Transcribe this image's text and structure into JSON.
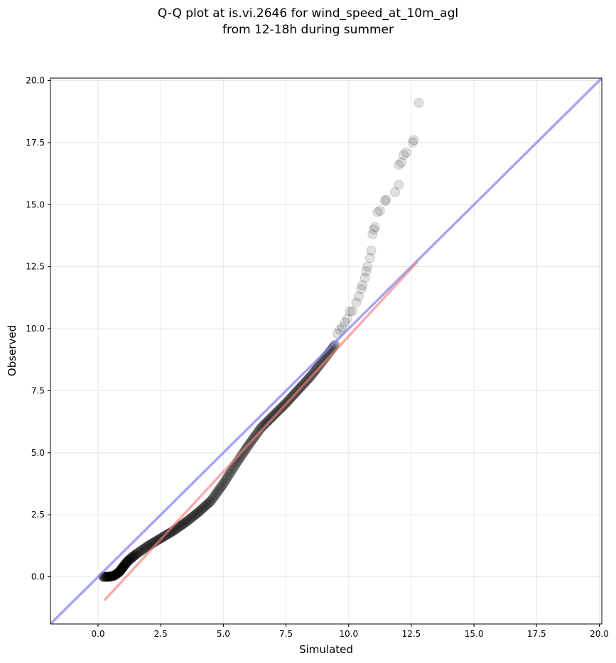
{
  "chart_data": {
    "type": "scatter",
    "title_line1": "Q-Q plot at is.vi.2646 for wind_speed_at_10m_agl",
    "title_line2": "from 12-18h during summer",
    "xlabel": "Simulated",
    "ylabel": "Observed",
    "xlim": [
      -1.9,
      20.1
    ],
    "ylim": [
      -1.9,
      20.1
    ],
    "xticks": [
      "0.0",
      "2.5",
      "5.0",
      "7.5",
      "10.0",
      "12.5",
      "15.0",
      "17.5",
      "20.0"
    ],
    "yticks": [
      "0.0",
      "2.5",
      "5.0",
      "7.5",
      "10.0",
      "12.5",
      "15.0",
      "17.5",
      "20.0"
    ],
    "grid": true,
    "colors": {
      "points": "#000000",
      "identity_line": "#7f7fef",
      "fit_line": "#f28080",
      "grid": "#e6e6e6"
    },
    "identity_line": {
      "x": [
        -1.9,
        20.1
      ],
      "y": [
        -1.9,
        20.1
      ]
    },
    "fit_line": {
      "x": [
        0.25,
        12.75
      ],
      "y": [
        -0.95,
        12.7
      ]
    },
    "quantile_curve": {
      "x": [
        0.2,
        0.45,
        0.65,
        0.85,
        1.0,
        1.2,
        1.5,
        2.0,
        2.5,
        3.0,
        3.5,
        4.0,
        4.5,
        5.0,
        5.5,
        6.0,
        6.5,
        7.0,
        7.5,
        8.0,
        8.5,
        9.0,
        9.5
      ],
      "y": [
        0.0,
        0.0,
        0.05,
        0.2,
        0.4,
        0.65,
        0.9,
        1.25,
        1.55,
        1.85,
        2.2,
        2.6,
        3.05,
        3.75,
        4.55,
        5.3,
        6.0,
        6.5,
        7.0,
        7.55,
        8.1,
        8.75,
        9.4
      ]
    },
    "tail_points": [
      {
        "x": 9.55,
        "y": 9.8
      },
      {
        "x": 9.65,
        "y": 9.95
      },
      {
        "x": 9.75,
        "y": 10.05
      },
      {
        "x": 9.85,
        "y": 10.25
      },
      {
        "x": 9.95,
        "y": 10.4
      },
      {
        "x": 10.05,
        "y": 10.7
      },
      {
        "x": 10.15,
        "y": 10.7
      },
      {
        "x": 10.3,
        "y": 11.05
      },
      {
        "x": 10.4,
        "y": 11.3
      },
      {
        "x": 10.5,
        "y": 11.6
      },
      {
        "x": 10.55,
        "y": 11.75
      },
      {
        "x": 10.65,
        "y": 12.05
      },
      {
        "x": 10.7,
        "y": 12.3
      },
      {
        "x": 10.75,
        "y": 12.5
      },
      {
        "x": 10.85,
        "y": 12.85
      },
      {
        "x": 10.9,
        "y": 13.15
      },
      {
        "x": 10.95,
        "y": 13.8
      },
      {
        "x": 11.0,
        "y": 14.0
      },
      {
        "x": 11.05,
        "y": 14.1
      },
      {
        "x": 11.15,
        "y": 14.7
      },
      {
        "x": 11.25,
        "y": 14.75
      },
      {
        "x": 11.45,
        "y": 15.15
      },
      {
        "x": 11.5,
        "y": 15.2
      },
      {
        "x": 11.85,
        "y": 15.5
      },
      {
        "x": 12.0,
        "y": 15.8
      },
      {
        "x": 12.0,
        "y": 16.6
      },
      {
        "x": 12.1,
        "y": 16.7
      },
      {
        "x": 12.2,
        "y": 17.0
      },
      {
        "x": 12.3,
        "y": 17.1
      },
      {
        "x": 12.55,
        "y": 17.5
      },
      {
        "x": 12.6,
        "y": 17.6
      },
      {
        "x": 12.8,
        "y": 19.1
      }
    ]
  }
}
